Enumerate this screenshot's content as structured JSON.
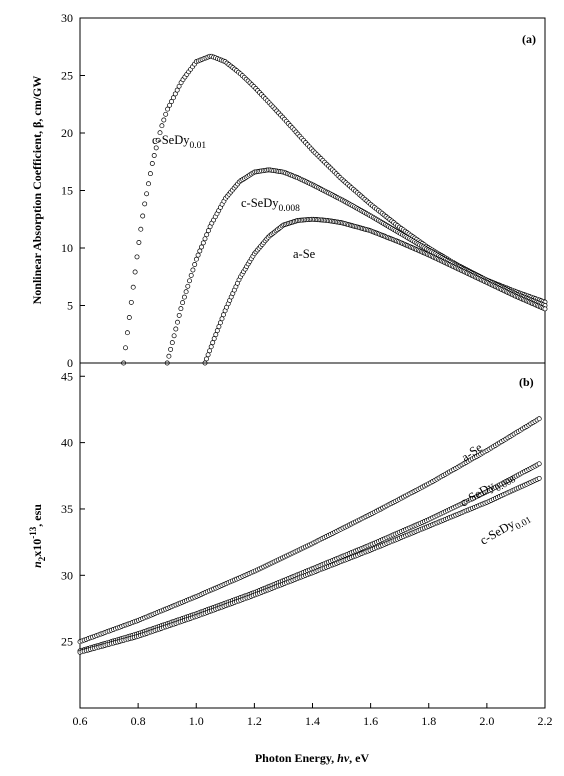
{
  "chart_data": [
    {
      "type": "scatter",
      "panel_label": "(a)",
      "ylabel": "Nonlinear Absorption Coefficient, β, cm/GW",
      "xlim": [
        0.6,
        2.2
      ],
      "ylim": [
        0,
        30
      ],
      "yticks": [
        "0",
        "5",
        "10",
        "15",
        "20",
        "25",
        "30"
      ],
      "grid": false,
      "series": [
        {
          "label_main": "c-SeDy",
          "label_sub": "0.01",
          "x": [
            0.75,
            0.78,
            0.8,
            0.82,
            0.85,
            0.88,
            0.9,
            0.95,
            1.0,
            1.05,
            1.1,
            1.15,
            1.2,
            1.3,
            1.4,
            1.5,
            1.6,
            1.7,
            1.8,
            1.9,
            2.0,
            2.1,
            2.2
          ],
          "y": [
            0.0,
            6.0,
            10.0,
            13.5,
            17.5,
            20.5,
            22.0,
            24.5,
            26.2,
            26.7,
            26.2,
            25.2,
            24.0,
            21.3,
            18.5,
            16.0,
            13.8,
            11.8,
            10.0,
            8.5,
            7.2,
            6.2,
            5.3
          ]
        },
        {
          "label_main": "c-SeDy",
          "label_sub": "0.008",
          "x": [
            0.9,
            0.95,
            1.0,
            1.05,
            1.1,
            1.15,
            1.2,
            1.25,
            1.3,
            1.35,
            1.4,
            1.5,
            1.6,
            1.7,
            1.8,
            1.9,
            2.0,
            2.1,
            2.2
          ],
          "y": [
            0.0,
            5.0,
            9.0,
            12.0,
            14.3,
            15.8,
            16.6,
            16.8,
            16.6,
            16.1,
            15.5,
            14.2,
            12.8,
            11.3,
            9.8,
            8.4,
            7.2,
            6.0,
            5.0
          ]
        },
        {
          "label_main": "a-Se",
          "label_sub": "",
          "x": [
            1.03,
            1.06,
            1.1,
            1.15,
            1.2,
            1.25,
            1.3,
            1.35,
            1.4,
            1.45,
            1.5,
            1.6,
            1.7,
            1.8,
            1.9,
            2.0,
            2.1,
            2.2
          ],
          "y": [
            0.0,
            2.0,
            4.6,
            7.4,
            9.5,
            11.0,
            12.0,
            12.4,
            12.5,
            12.4,
            12.2,
            11.5,
            10.5,
            9.4,
            8.2,
            7.0,
            5.8,
            4.7
          ]
        }
      ]
    },
    {
      "type": "scatter",
      "panel_label": "(b)",
      "ylabel_main": "n",
      "ylabel_sub": "2",
      "ylabel_mid": "x10",
      "ylabel_sup": "-13",
      "ylabel_end": ", esu",
      "xlabel_main": "Photon Energy, ",
      "xlabel_sym": "hν",
      "xlabel_end": ", eV",
      "xlim": [
        0.6,
        2.2
      ],
      "ylim": [
        20,
        46
      ],
      "xticks": [
        "0.6",
        "0.8",
        "1.0",
        "1.2",
        "1.4",
        "1.6",
        "1.8",
        "2.0",
        "2.2"
      ],
      "yticks": [
        "25",
        "30",
        "35",
        "40",
        "45"
      ],
      "grid": false,
      "series": [
        {
          "label_main": "a-Se",
          "label_sub": "",
          "x": [
            0.6,
            0.8,
            1.0,
            1.2,
            1.4,
            1.6,
            1.8,
            2.0,
            2.18
          ],
          "y": [
            25.0,
            26.6,
            28.4,
            30.3,
            32.4,
            34.6,
            36.9,
            39.4,
            41.8
          ]
        },
        {
          "label_main": "c-SeDy",
          "label_sub": "0.008",
          "x": [
            0.6,
            0.8,
            1.0,
            1.2,
            1.4,
            1.6,
            1.8,
            2.0,
            2.18
          ],
          "y": [
            24.3,
            25.6,
            27.1,
            28.7,
            30.5,
            32.3,
            34.2,
            36.3,
            38.4
          ]
        },
        {
          "label_main": "c-SeDy",
          "label_sub": "0.01",
          "x": [
            0.6,
            0.8,
            1.0,
            1.2,
            1.4,
            1.6,
            1.8,
            2.0,
            2.18
          ],
          "y": [
            24.2,
            25.4,
            26.9,
            28.5,
            30.2,
            31.9,
            33.7,
            35.5,
            37.3
          ]
        }
      ]
    }
  ]
}
